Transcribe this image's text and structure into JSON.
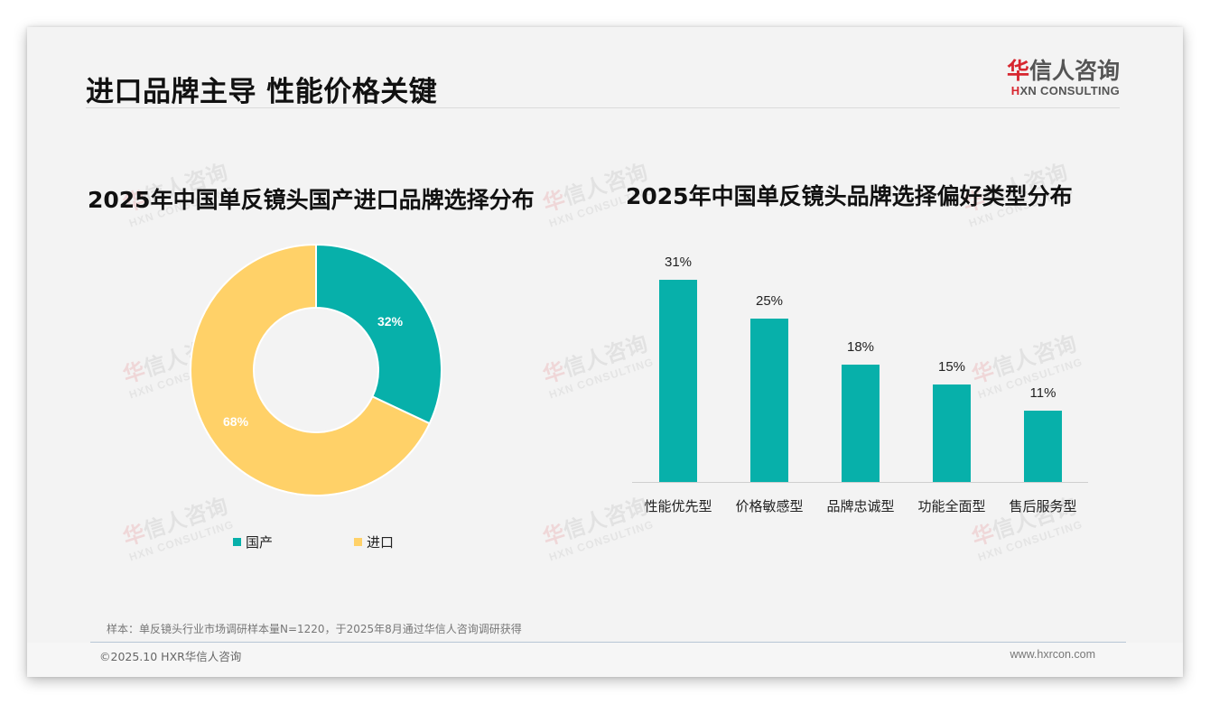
{
  "header": {
    "title": "进口品牌主导 性能价格关键",
    "logo": {
      "cn_accent": "华",
      "cn_rest": "信人咨询",
      "en_accent": "H",
      "en_rest": "XN CONSULTING"
    }
  },
  "watermark": {
    "cn_accent": "华",
    "cn_rest": "信人咨询",
    "en": "HXN CONSULTING"
  },
  "left_panel": {
    "title": "2025年中国单反镜头国产进口品牌选择分布",
    "legend": [
      {
        "label": "国产",
        "color": "#07b0aa"
      },
      {
        "label": "进口",
        "color": "#ffd168"
      }
    ]
  },
  "right_panel": {
    "title": "2025年中国单反镜头品牌选择偏好类型分布"
  },
  "chart_data": [
    {
      "type": "pie",
      "variant": "donut",
      "title": "2025年中国单反镜头国产进口品牌选择分布",
      "categories": [
        "国产",
        "进口"
      ],
      "values": [
        32,
        68
      ],
      "labels": [
        "32%",
        "68%"
      ],
      "colors": [
        "#07b0aa",
        "#ffd168"
      ],
      "legend_position": "bottom",
      "start_angle": "12 o'clock, clockwise"
    },
    {
      "type": "bar",
      "title": "2025年中国单反镜头品牌选择偏好类型分布",
      "categories": [
        "性能优先型",
        "价格敏感型",
        "品牌忠诚型",
        "功能全面型",
        "售后服务型"
      ],
      "values": [
        31,
        25,
        18,
        15,
        11
      ],
      "labels": [
        "31%",
        "25%",
        "18%",
        "15%",
        "11%"
      ],
      "color": "#07b0aa",
      "xlabel": "",
      "ylabel": "",
      "unit": "%",
      "grid": false,
      "yaxis_visible": false
    }
  ],
  "footer": {
    "note": "样本：单反镜头行业市场调研样本量N=1220，于2025年8月通过华信人咨询调研获得",
    "copyright": "©2025.10 HXR华信人咨询",
    "website": "www.hxrcon.com"
  }
}
